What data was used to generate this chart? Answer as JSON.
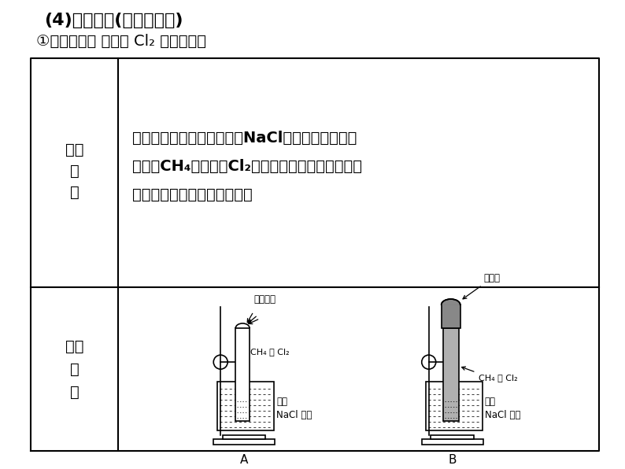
{
  "bg_color": "#ffffff",
  "title1": "(4)取代反应(以甲烷为例)",
  "title2": "①实验探究： 甲烷与 Cl₂ 的取代反应",
  "row1_left_line1": "实验",
  "row1_left_line2": "操",
  "row1_left_line3": "作",
  "row1_right_line1": "取两支试管，均通过排饱和NaCl溶液的方法，收集",
  "row1_right_line2": "半试管CH₄和半试管Cl₂。将其中一支试管用铝箔套",
  "row1_right_line3": "套上，另一支试管放在光亮处",
  "row2_left_line1": "实验",
  "row2_left_line2": "装",
  "row2_left_line3": "置",
  "label_A_sunlight": "漫散日光",
  "label_A_gas": "CH₄ 和 Cl₂",
  "label_A_sol1": "饱和",
  "label_A_sol2": "NaCl 溶液",
  "label_A": "A",
  "label_B_foil": "铝箔套",
  "label_B_gas": "CH₄ 和 Cl₂",
  "label_B_sol1": "饱和",
  "label_B_sol2": "NaCl 溶液",
  "label_B": "B"
}
